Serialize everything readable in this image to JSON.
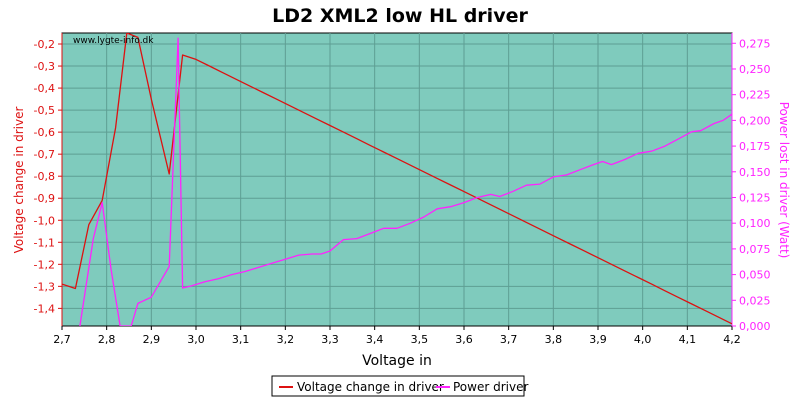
{
  "chart_data": {
    "type": "line",
    "title": "LD2 XML2 low HL driver",
    "watermark": "www.lygte-info.dk",
    "xlabel": "Voltage in",
    "ylabel_left": "Voltage change in driver",
    "ylabel_right": "Power lost in driver (Watt)",
    "xlim": [
      2.7,
      4.2
    ],
    "ylim_left": [
      -1.48,
      -0.15
    ],
    "ylim_right": [
      0.0,
      0.285
    ],
    "x_ticks": [
      "2,7",
      "2,8",
      "2,9",
      "3,0",
      "3,1",
      "3,2",
      "3,3",
      "3,4",
      "3,5",
      "3,6",
      "3,7",
      "3,8",
      "3,9",
      "4,0",
      "4,1",
      "4,2"
    ],
    "y_left_ticks": [
      "-0,2",
      "-0,3",
      "-0,4",
      "-0,5",
      "-0,6",
      "-0,7",
      "-0,8",
      "-0,9",
      "-1,0",
      "-1,1",
      "-1,2",
      "-1,3",
      "-1,4"
    ],
    "y_right_ticks": [
      "0,000",
      "0,025",
      "0,050",
      "0,075",
      "0,100",
      "0,125",
      "0,150",
      "0,175",
      "0,200",
      "0,225",
      "0,250",
      "0,275"
    ],
    "grid": true,
    "legend_position": "bottom-center",
    "colors": {
      "plot_bg": "#7fcbbd",
      "grid": "#5e9e93",
      "voltage": "#dd1111",
      "power": "#ff22ff",
      "left_axis": "#dd1111",
      "right_axis": "#ff22ff",
      "text": "#000000"
    },
    "series": [
      {
        "name": "Voltage change in driver",
        "axis": "left",
        "x": [
          2.7,
          2.73,
          2.76,
          2.79,
          2.82,
          2.845,
          2.87,
          2.9,
          2.94,
          2.97,
          3.0,
          3.03,
          3.06,
          3.09,
          3.12,
          3.15,
          3.18,
          3.21,
          3.24,
          3.27,
          3.3,
          3.33,
          3.36,
          3.39,
          3.42,
          3.45,
          3.48,
          3.51,
          3.54,
          3.57,
          3.6,
          3.63,
          3.66,
          3.69,
          3.72,
          3.75,
          3.78,
          3.81,
          3.84,
          3.87,
          3.9,
          3.93,
          3.96,
          3.99,
          4.02,
          4.05,
          4.08,
          4.11,
          4.14,
          4.17,
          4.2
        ],
        "values": [
          -1.29,
          -1.31,
          -1.02,
          -0.91,
          -0.58,
          -0.15,
          -0.17,
          -0.45,
          -0.79,
          -0.25,
          -0.27,
          -0.3,
          -0.33,
          -0.36,
          -0.39,
          -0.42,
          -0.45,
          -0.48,
          -0.51,
          -0.54,
          -0.57,
          -0.6,
          -0.63,
          -0.66,
          -0.69,
          -0.72,
          -0.75,
          -0.78,
          -0.81,
          -0.84,
          -0.87,
          -0.9,
          -0.93,
          -0.96,
          -0.99,
          -1.02,
          -1.05,
          -1.08,
          -1.11,
          -1.14,
          -1.17,
          -1.2,
          -1.23,
          -1.26,
          -1.29,
          -1.32,
          -1.35,
          -1.38,
          -1.41,
          -1.44,
          -1.47
        ]
      },
      {
        "name": "Power driver",
        "axis": "right",
        "x": [
          2.74,
          2.77,
          2.79,
          2.81,
          2.83,
          2.84,
          2.855,
          2.87,
          2.9,
          2.94,
          2.96,
          2.97,
          2.99,
          3.02,
          3.05,
          3.08,
          3.11,
          3.14,
          3.17,
          3.2,
          3.23,
          3.26,
          3.28,
          3.3,
          3.33,
          3.36,
          3.39,
          3.42,
          3.45,
          3.48,
          3.51,
          3.54,
          3.57,
          3.6,
          3.63,
          3.66,
          3.68,
          3.71,
          3.74,
          3.77,
          3.8,
          3.83,
          3.86,
          3.89,
          3.91,
          3.93,
          3.96,
          3.99,
          4.02,
          4.05,
          4.08,
          4.11,
          4.13,
          4.16,
          4.18,
          4.2
        ],
        "values": [
          0.0,
          0.085,
          0.12,
          0.055,
          0.0,
          0.0,
          0.0,
          0.022,
          0.028,
          0.058,
          0.28,
          0.037,
          0.039,
          0.043,
          0.046,
          0.05,
          0.053,
          0.057,
          0.061,
          0.065,
          0.069,
          0.07,
          0.07,
          0.073,
          0.084,
          0.085,
          0.09,
          0.095,
          0.095,
          0.1,
          0.106,
          0.114,
          0.116,
          0.12,
          0.125,
          0.128,
          0.126,
          0.131,
          0.137,
          0.138,
          0.145,
          0.147,
          0.152,
          0.157,
          0.16,
          0.157,
          0.162,
          0.168,
          0.17,
          0.175,
          0.182,
          0.189,
          0.19,
          0.197,
          0.2,
          0.206
        ]
      }
    ]
  }
}
